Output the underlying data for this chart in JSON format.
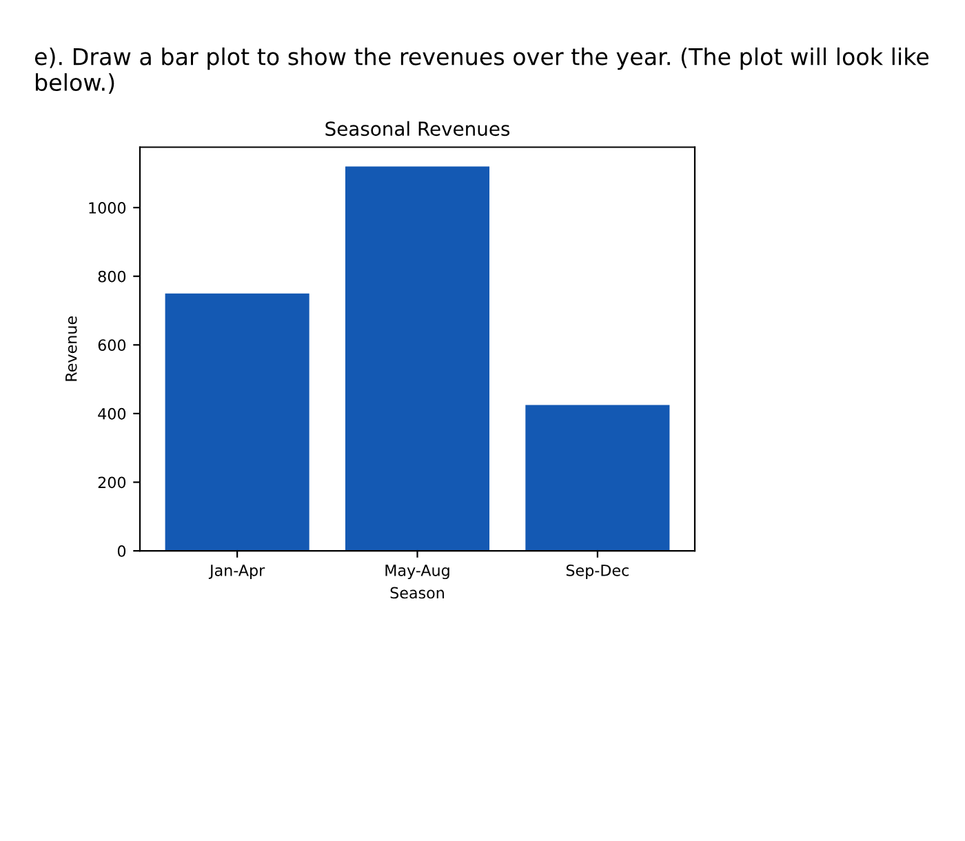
{
  "chart_data": {
    "type": "bar",
    "title": "Seasonal Revenues",
    "xlabel": "Season",
    "ylabel": "Revenue",
    "annotations": [
      "e). Draw a bar plot to show the revenues over the year. (The plot will look like below.)"
    ],
    "categories": [
      "Jan-Apr",
      "May-Aug",
      "Sep-Dec"
    ],
    "values": [
      750,
      1120,
      425
    ],
    "color": "#1459b3",
    "ylim": [
      0,
      1176
    ],
    "yticks": [
      0,
      200,
      400,
      600,
      800,
      1000
    ],
    "grid": false,
    "legend": false
  }
}
